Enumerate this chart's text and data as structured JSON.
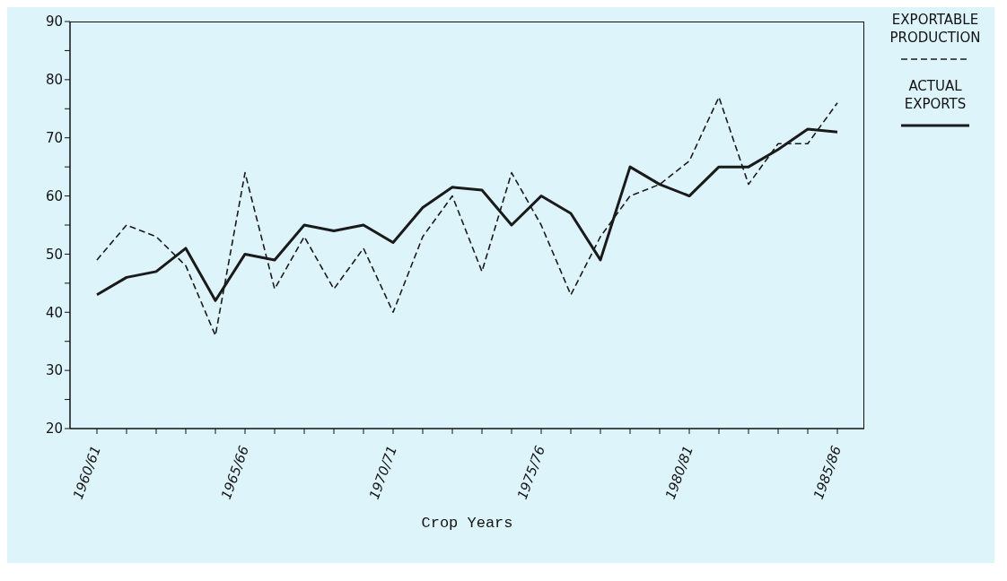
{
  "chart_data": {
    "type": "line",
    "xlabel": "Crop Years",
    "categories": [
      "1960/61",
      null,
      null,
      null,
      null,
      "1965/66",
      null,
      null,
      null,
      null,
      "1970/71",
      null,
      null,
      null,
      null,
      "1975/76",
      null,
      null,
      null,
      null,
      "1980/81",
      null,
      null,
      null,
      null,
      "1985/86"
    ],
    "series": [
      {
        "name": "EXPORTABLE PRODUCTION",
        "color": "#1a1a1a",
        "line_style": "dashed",
        "values": [
          49,
          55,
          53,
          48,
          36,
          64,
          44,
          53,
          44,
          51,
          40,
          53,
          60,
          47,
          64,
          55,
          43,
          53,
          60,
          62,
          66,
          77,
          62,
          69,
          69,
          76
        ]
      },
      {
        "name": "ACTUAL EXPORTS",
        "color": "#1a1a1a",
        "line_style": "solid",
        "values": [
          43,
          46,
          47,
          51,
          42,
          50,
          49,
          55,
          54,
          55,
          52,
          58,
          61.5,
          61,
          55,
          60,
          57,
          49,
          65,
          62,
          60,
          65,
          65,
          68,
          71.5,
          71
        ]
      }
    ],
    "ylim": [
      20,
      90
    ],
    "yticks": [
      20,
      {
        "value": 25,
        "label": null
      },
      30,
      {
        "value": 35,
        "label": null
      },
      40,
      {
        "value": 45,
        "label": null
      },
      50,
      {
        "value": 55,
        "label": null
      },
      60,
      {
        "value": 65,
        "label": null
      },
      70,
      {
        "value": 75,
        "label": null
      },
      80,
      {
        "value": 85,
        "label": null
      },
      90
    ],
    "grid": false,
    "legend": "right",
    "marker": "none"
  }
}
